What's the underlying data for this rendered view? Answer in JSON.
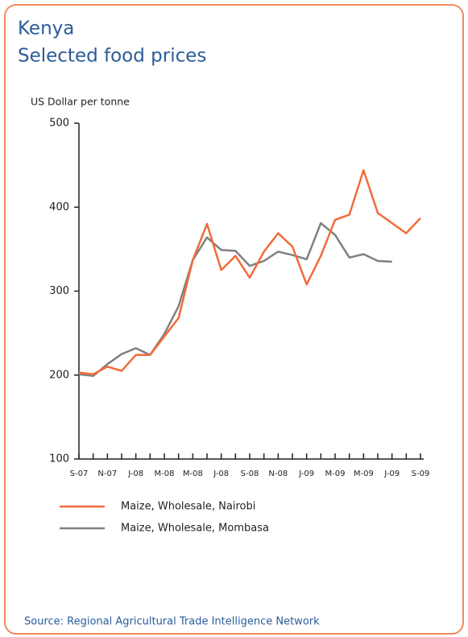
{
  "chart_data": {
    "type": "line",
    "title": "Kenya",
    "subtitle": "Selected food prices",
    "y_label": "US Dollar per tonne",
    "source": "Source: Regional Agricultural Trade Intelligence Network",
    "categories": [
      "S-07",
      null,
      "N-07",
      null,
      "J-08",
      null,
      "M-08",
      null,
      "M-08",
      null,
      "J-08",
      null,
      "S-08",
      null,
      "N-08",
      null,
      "J-09",
      null,
      "M-09",
      null,
      "M-09",
      null,
      "J-09",
      null,
      "S-09"
    ],
    "series": [
      {
        "name": "Maize, Wholesale, Nairobi",
        "color": "#f26b3a",
        "values": [
          203,
          201,
          210,
          205,
          224,
          224,
          246,
          268,
          337,
          380,
          325,
          342,
          316,
          347,
          369,
          353,
          308,
          342,
          385,
          391,
          444,
          393,
          381,
          369,
          387
        ]
      },
      {
        "name": "Maize, Wholesale, Mombasa",
        "color": "#808080",
        "values": [
          201,
          199,
          213,
          225,
          232,
          224,
          249,
          282,
          337,
          364,
          349,
          348,
          330,
          336,
          347,
          343,
          338,
          381,
          367,
          340,
          344,
          336,
          335,
          null,
          null
        ]
      }
    ],
    "ylim": [
      100,
      500
    ],
    "yticks": [
      100,
      200,
      300,
      400,
      500
    ],
    "grid": false
  }
}
